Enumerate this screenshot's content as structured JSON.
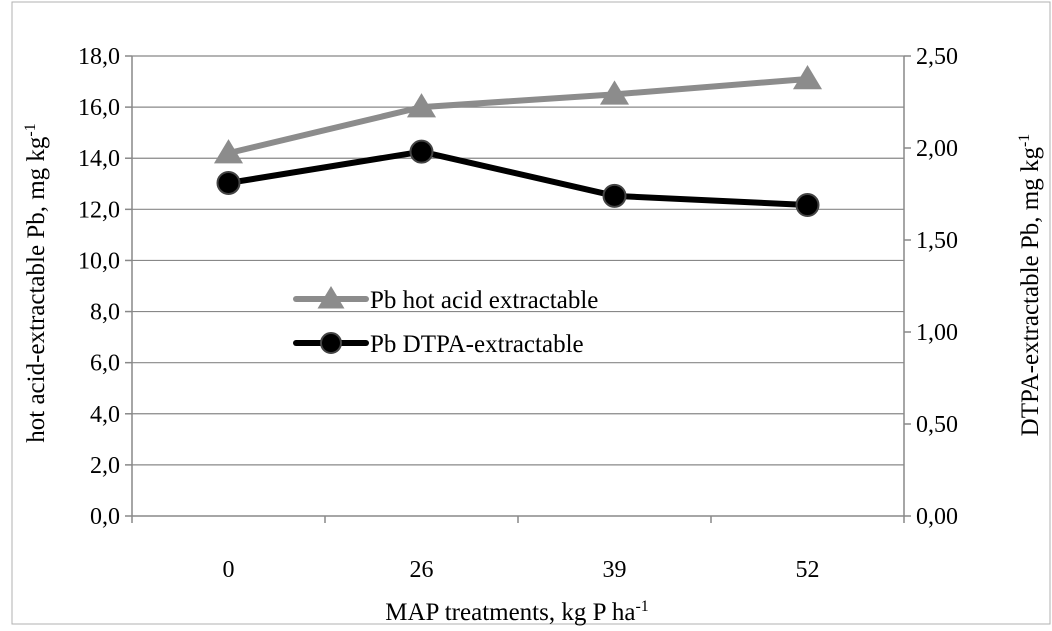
{
  "chart_data": {
    "type": "line",
    "categories": [
      "0",
      "26",
      "39",
      "52"
    ],
    "xlabel_main": "MAP treatments, kg P ha",
    "xlabel_sup": "-1",
    "ylabel_left_main": "hot acid-extractable Pb, mg kg",
    "ylabel_left_sup": "-1",
    "ylabel_right_main": "DTPA-extractable Pb, mg kg",
    "ylabel_right_sup": "-1",
    "ylim_left": [
      0,
      18
    ],
    "ylim_right": [
      0,
      2.5
    ],
    "yticks_left": [
      "0,0",
      "2,0",
      "4,0",
      "6,0",
      "8,0",
      "10,0",
      "12,0",
      "14,0",
      "16,0",
      "18,0"
    ],
    "yticks_right": [
      "0,00",
      "0,50",
      "1,00",
      "1,50",
      "2,00",
      "2,50"
    ],
    "grid": true,
    "legend_position": "center-left",
    "series": [
      {
        "name": "Pb hot acid extractable",
        "axis": "left",
        "marker": "triangle",
        "color": "#8c8c8c",
        "values": [
          14.2,
          16.0,
          16.5,
          17.1
        ]
      },
      {
        "name": "Pb DTPA-extractable",
        "axis": "right",
        "marker": "circle",
        "color": "#000000",
        "values": [
          1.81,
          1.98,
          1.74,
          1.69
        ]
      }
    ]
  }
}
